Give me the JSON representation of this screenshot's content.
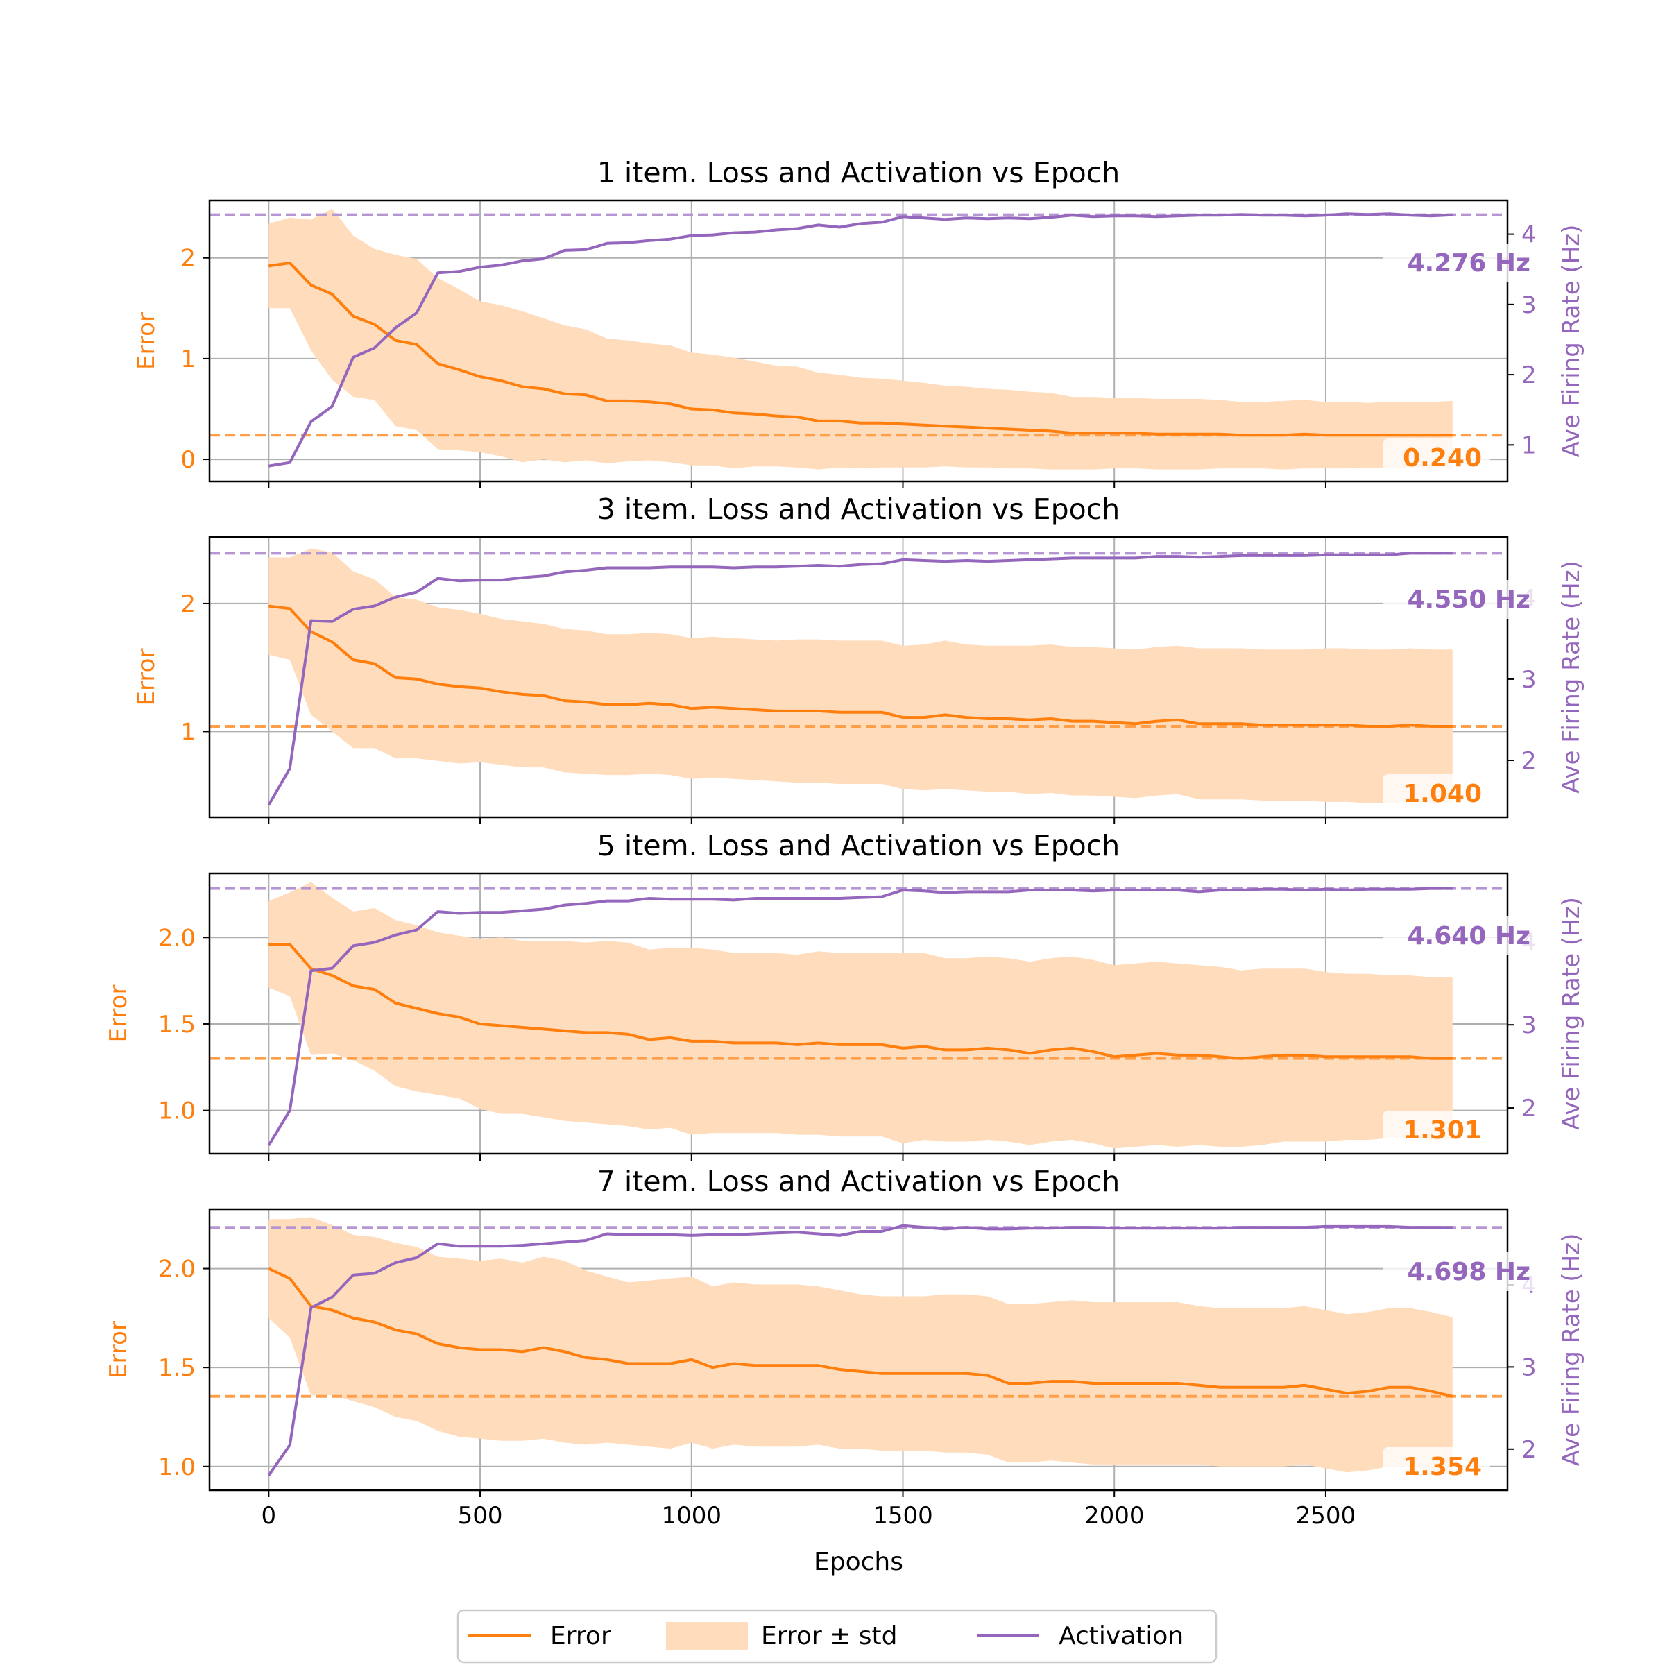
{
  "colors": {
    "error": "#ff7f0e",
    "band": "#ffdcbc",
    "activation": "#9467bd",
    "error_ref": "#ff9f4a",
    "act_ref": "#b596d3",
    "grid": "#b0b0b0",
    "axis": "#000000"
  },
  "shared": {
    "xlabel": "Epochs",
    "xticks": [
      0,
      500,
      1000,
      1500,
      2000,
      2500
    ],
    "xlim": [
      -140,
      2930
    ],
    "left_ylabel": "Error",
    "right_ylabel": "Ave Firing Rate (Hz)",
    "legend": {
      "position": "bottom-center",
      "items": [
        {
          "label": "Error",
          "kind": "line",
          "color_key": "error"
        },
        {
          "label": "Error ± std",
          "kind": "band",
          "color_key": "band"
        },
        {
          "label": "Activation",
          "kind": "line",
          "color_key": "activation"
        }
      ]
    }
  },
  "chart_data": [
    {
      "type": "line",
      "title": "1 item. Loss and Activation vs Epoch",
      "x": [
        0,
        50,
        100,
        150,
        200,
        250,
        300,
        350,
        400,
        450,
        500,
        550,
        600,
        650,
        700,
        750,
        800,
        850,
        900,
        950,
        1000,
        1050,
        1100,
        1150,
        1200,
        1250,
        1300,
        1350,
        1400,
        1450,
        1500,
        1550,
        1600,
        1650,
        1700,
        1750,
        1800,
        1850,
        1900,
        1950,
        2000,
        2050,
        2100,
        2150,
        2200,
        2250,
        2300,
        2350,
        2400,
        2450,
        2500,
        2550,
        2600,
        2650,
        2700,
        2750,
        2800
      ],
      "error": [
        1.92,
        1.95,
        1.73,
        1.64,
        1.42,
        1.34,
        1.18,
        1.14,
        0.95,
        0.89,
        0.82,
        0.78,
        0.72,
        0.7,
        0.65,
        0.64,
        0.58,
        0.58,
        0.57,
        0.55,
        0.5,
        0.49,
        0.46,
        0.45,
        0.43,
        0.42,
        0.38,
        0.38,
        0.36,
        0.36,
        0.35,
        0.34,
        0.33,
        0.32,
        0.31,
        0.3,
        0.29,
        0.28,
        0.26,
        0.26,
        0.26,
        0.26,
        0.25,
        0.25,
        0.25,
        0.25,
        0.24,
        0.24,
        0.24,
        0.25,
        0.24,
        0.24,
        0.24,
        0.24,
        0.24,
        0.24,
        0.24
      ],
      "error_std": [
        0.42,
        0.45,
        0.65,
        0.85,
        0.8,
        0.75,
        0.85,
        0.85,
        0.85,
        0.8,
        0.75,
        0.75,
        0.75,
        0.7,
        0.68,
        0.65,
        0.62,
        0.6,
        0.58,
        0.58,
        0.56,
        0.55,
        0.55,
        0.52,
        0.5,
        0.5,
        0.48,
        0.46,
        0.45,
        0.44,
        0.43,
        0.42,
        0.4,
        0.4,
        0.39,
        0.39,
        0.38,
        0.38,
        0.36,
        0.36,
        0.35,
        0.35,
        0.35,
        0.35,
        0.35,
        0.34,
        0.33,
        0.33,
        0.34,
        0.34,
        0.33,
        0.33,
        0.32,
        0.33,
        0.33,
        0.33,
        0.34
      ],
      "activation": [
        0.7,
        0.75,
        1.33,
        1.55,
        2.25,
        2.38,
        2.67,
        2.88,
        3.45,
        3.47,
        3.53,
        3.56,
        3.62,
        3.65,
        3.77,
        3.78,
        3.87,
        3.88,
        3.91,
        3.93,
        3.98,
        3.99,
        4.02,
        4.03,
        4.06,
        4.08,
        4.13,
        4.1,
        4.15,
        4.17,
        4.25,
        4.23,
        4.21,
        4.23,
        4.22,
        4.23,
        4.22,
        4.24,
        4.27,
        4.25,
        4.26,
        4.26,
        4.25,
        4.26,
        4.27,
        4.27,
        4.28,
        4.27,
        4.27,
        4.26,
        4.27,
        4.29,
        4.28,
        4.29,
        4.27,
        4.26,
        4.276
      ],
      "left_ylim": [
        -0.22,
        2.57
      ],
      "left_yticks": [
        {
          "v": 0,
          "label": "0"
        },
        {
          "v": 1,
          "label": "1"
        },
        {
          "v": 2,
          "label": "2"
        }
      ],
      "right_ylim": [
        0.48,
        4.48
      ],
      "right_yticks": [
        {
          "v": 1,
          "label": "1"
        },
        {
          "v": 2,
          "label": "2"
        },
        {
          "v": 3,
          "label": "3"
        },
        {
          "v": 4,
          "label": "4"
        }
      ],
      "error_final_label": "0.240",
      "error_final": 0.24,
      "act_final_label": "4.276 Hz",
      "act_final": 4.276
    },
    {
      "type": "line",
      "title": "3 item. Loss and Activation vs Epoch",
      "x": [
        0,
        50,
        100,
        150,
        200,
        250,
        300,
        350,
        400,
        450,
        500,
        550,
        600,
        650,
        700,
        750,
        800,
        850,
        900,
        950,
        1000,
        1050,
        1100,
        1150,
        1200,
        1250,
        1300,
        1350,
        1400,
        1450,
        1500,
        1550,
        1600,
        1650,
        1700,
        1750,
        1800,
        1850,
        1900,
        1950,
        2000,
        2050,
        2100,
        2150,
        2200,
        2250,
        2300,
        2350,
        2400,
        2450,
        2500,
        2550,
        2600,
        2650,
        2700,
        2750,
        2800
      ],
      "error": [
        1.98,
        1.96,
        1.78,
        1.7,
        1.56,
        1.53,
        1.42,
        1.41,
        1.37,
        1.35,
        1.34,
        1.31,
        1.29,
        1.28,
        1.24,
        1.23,
        1.21,
        1.21,
        1.22,
        1.21,
        1.18,
        1.19,
        1.18,
        1.17,
        1.16,
        1.16,
        1.16,
        1.15,
        1.15,
        1.15,
        1.11,
        1.11,
        1.13,
        1.11,
        1.1,
        1.1,
        1.09,
        1.1,
        1.08,
        1.08,
        1.07,
        1.06,
        1.08,
        1.09,
        1.06,
        1.06,
        1.06,
        1.05,
        1.05,
        1.05,
        1.05,
        1.05,
        1.04,
        1.04,
        1.05,
        1.04,
        1.04
      ],
      "error_std": [
        0.38,
        0.4,
        0.65,
        0.7,
        0.69,
        0.66,
        0.63,
        0.62,
        0.6,
        0.6,
        0.58,
        0.57,
        0.57,
        0.56,
        0.56,
        0.56,
        0.55,
        0.55,
        0.55,
        0.55,
        0.55,
        0.55,
        0.55,
        0.55,
        0.55,
        0.56,
        0.56,
        0.56,
        0.56,
        0.56,
        0.56,
        0.57,
        0.58,
        0.57,
        0.57,
        0.57,
        0.58,
        0.58,
        0.58,
        0.58,
        0.58,
        0.58,
        0.58,
        0.58,
        0.59,
        0.59,
        0.59,
        0.59,
        0.59,
        0.59,
        0.6,
        0.6,
        0.6,
        0.6,
        0.6,
        0.6,
        0.6
      ],
      "activation": [
        1.45,
        1.9,
        3.72,
        3.71,
        3.86,
        3.9,
        4.01,
        4.07,
        4.24,
        4.21,
        4.22,
        4.22,
        4.25,
        4.27,
        4.32,
        4.34,
        4.37,
        4.37,
        4.37,
        4.38,
        4.38,
        4.38,
        4.37,
        4.38,
        4.38,
        4.39,
        4.4,
        4.39,
        4.41,
        4.42,
        4.47,
        4.46,
        4.45,
        4.46,
        4.45,
        4.46,
        4.47,
        4.48,
        4.49,
        4.49,
        4.49,
        4.49,
        4.51,
        4.51,
        4.5,
        4.51,
        4.52,
        4.52,
        4.52,
        4.52,
        4.53,
        4.53,
        4.53,
        4.53,
        4.55,
        4.55,
        4.55
      ],
      "left_ylim": [
        0.33,
        2.52
      ],
      "left_yticks": [
        {
          "v": 1,
          "label": "1"
        },
        {
          "v": 2,
          "label": "2"
        }
      ],
      "right_ylim": [
        1.3,
        4.75
      ],
      "right_yticks": [
        {
          "v": 2,
          "label": "2"
        },
        {
          "v": 3,
          "label": "3"
        },
        {
          "v": 4,
          "label": "4"
        }
      ],
      "error_final_label": "1.040",
      "error_final": 1.04,
      "act_final_label": "4.550 Hz",
      "act_final": 4.55
    },
    {
      "type": "line",
      "title": "5 item. Loss and Activation vs Epoch",
      "x": [
        0,
        50,
        100,
        150,
        200,
        250,
        300,
        350,
        400,
        450,
        500,
        550,
        600,
        650,
        700,
        750,
        800,
        850,
        900,
        950,
        1000,
        1050,
        1100,
        1150,
        1200,
        1250,
        1300,
        1350,
        1400,
        1450,
        1500,
        1550,
        1600,
        1650,
        1700,
        1750,
        1800,
        1850,
        1900,
        1950,
        2000,
        2050,
        2100,
        2150,
        2200,
        2250,
        2300,
        2350,
        2400,
        2450,
        2500,
        2550,
        2600,
        2650,
        2700,
        2750,
        2800
      ],
      "error": [
        1.96,
        1.96,
        1.82,
        1.78,
        1.72,
        1.7,
        1.62,
        1.59,
        1.56,
        1.54,
        1.5,
        1.49,
        1.48,
        1.47,
        1.46,
        1.45,
        1.45,
        1.44,
        1.41,
        1.42,
        1.4,
        1.4,
        1.39,
        1.39,
        1.39,
        1.38,
        1.39,
        1.38,
        1.38,
        1.38,
        1.36,
        1.37,
        1.35,
        1.35,
        1.36,
        1.35,
        1.33,
        1.35,
        1.36,
        1.34,
        1.31,
        1.32,
        1.33,
        1.32,
        1.32,
        1.31,
        1.3,
        1.31,
        1.32,
        1.32,
        1.31,
        1.31,
        1.31,
        1.31,
        1.31,
        1.3,
        1.301
      ],
      "error_std": [
        0.25,
        0.3,
        0.5,
        0.45,
        0.43,
        0.47,
        0.48,
        0.48,
        0.47,
        0.47,
        0.49,
        0.51,
        0.5,
        0.51,
        0.52,
        0.52,
        0.53,
        0.53,
        0.52,
        0.52,
        0.54,
        0.53,
        0.52,
        0.52,
        0.52,
        0.52,
        0.53,
        0.53,
        0.53,
        0.53,
        0.55,
        0.54,
        0.53,
        0.53,
        0.53,
        0.53,
        0.53,
        0.53,
        0.53,
        0.53,
        0.53,
        0.53,
        0.53,
        0.53,
        0.52,
        0.52,
        0.51,
        0.51,
        0.5,
        0.5,
        0.49,
        0.48,
        0.48,
        0.47,
        0.47,
        0.47,
        0.47
      ],
      "activation": [
        1.55,
        1.97,
        3.65,
        3.68,
        3.95,
        3.99,
        4.08,
        4.14,
        4.36,
        4.34,
        4.35,
        4.35,
        4.37,
        4.39,
        4.44,
        4.46,
        4.49,
        4.49,
        4.52,
        4.51,
        4.51,
        4.51,
        4.5,
        4.52,
        4.52,
        4.52,
        4.52,
        4.52,
        4.53,
        4.54,
        4.62,
        4.61,
        4.59,
        4.6,
        4.6,
        4.6,
        4.62,
        4.62,
        4.62,
        4.61,
        4.62,
        4.62,
        4.62,
        4.62,
        4.6,
        4.62,
        4.62,
        4.63,
        4.63,
        4.62,
        4.63,
        4.62,
        4.63,
        4.63,
        4.63,
        4.64,
        4.64
      ],
      "left_ylim": [
        0.75,
        2.37
      ],
      "left_yticks": [
        {
          "v": 1.0,
          "label": "1.0"
        },
        {
          "v": 1.5,
          "label": "1.5"
        },
        {
          "v": 2.0,
          "label": "2.0"
        }
      ],
      "right_ylim": [
        1.45,
        4.82
      ],
      "right_yticks": [
        {
          "v": 2,
          "label": "2"
        },
        {
          "v": 3,
          "label": "3"
        },
        {
          "v": 4,
          "label": "4"
        }
      ],
      "error_final_label": "1.301",
      "error_final": 1.301,
      "act_final_label": "4.640 Hz",
      "act_final": 4.64
    },
    {
      "type": "line",
      "title": "7 item. Loss and Activation vs Epoch",
      "x": [
        0,
        50,
        100,
        150,
        200,
        250,
        300,
        350,
        400,
        450,
        500,
        550,
        600,
        650,
        700,
        750,
        800,
        850,
        900,
        950,
        1000,
        1050,
        1100,
        1150,
        1200,
        1250,
        1300,
        1350,
        1400,
        1450,
        1500,
        1550,
        1600,
        1650,
        1700,
        1750,
        1800,
        1850,
        1900,
        1950,
        2000,
        2050,
        2100,
        2150,
        2200,
        2250,
        2300,
        2350,
        2400,
        2450,
        2500,
        2550,
        2600,
        2650,
        2700,
        2750,
        2800
      ],
      "error": [
        2.0,
        1.95,
        1.81,
        1.79,
        1.75,
        1.73,
        1.69,
        1.67,
        1.62,
        1.6,
        1.59,
        1.59,
        1.58,
        1.6,
        1.58,
        1.55,
        1.54,
        1.52,
        1.52,
        1.52,
        1.54,
        1.5,
        1.52,
        1.51,
        1.51,
        1.51,
        1.51,
        1.49,
        1.48,
        1.47,
        1.47,
        1.47,
        1.47,
        1.47,
        1.46,
        1.42,
        1.42,
        1.43,
        1.43,
        1.42,
        1.42,
        1.42,
        1.42,
        1.42,
        1.41,
        1.4,
        1.4,
        1.4,
        1.4,
        1.41,
        1.39,
        1.37,
        1.38,
        1.4,
        1.4,
        1.38,
        1.354
      ],
      "error_std": [
        0.25,
        0.3,
        0.45,
        0.43,
        0.42,
        0.43,
        0.44,
        0.44,
        0.44,
        0.45,
        0.45,
        0.46,
        0.45,
        0.46,
        0.46,
        0.44,
        0.42,
        0.41,
        0.42,
        0.43,
        0.42,
        0.41,
        0.41,
        0.41,
        0.41,
        0.41,
        0.4,
        0.4,
        0.39,
        0.39,
        0.39,
        0.39,
        0.4,
        0.4,
        0.4,
        0.4,
        0.4,
        0.4,
        0.41,
        0.41,
        0.41,
        0.41,
        0.41,
        0.41,
        0.4,
        0.4,
        0.4,
        0.4,
        0.4,
        0.4,
        0.4,
        0.4,
        0.4,
        0.4,
        0.4,
        0.4,
        0.4
      ],
      "activation": [
        1.68,
        2.05,
        3.72,
        3.85,
        4.12,
        4.14,
        4.27,
        4.33,
        4.5,
        4.47,
        4.47,
        4.47,
        4.48,
        4.5,
        4.52,
        4.54,
        4.62,
        4.61,
        4.61,
        4.61,
        4.6,
        4.61,
        4.61,
        4.62,
        4.63,
        4.64,
        4.62,
        4.6,
        4.65,
        4.65,
        4.72,
        4.7,
        4.68,
        4.7,
        4.68,
        4.68,
        4.69,
        4.69,
        4.7,
        4.7,
        4.69,
        4.69,
        4.69,
        4.69,
        4.69,
        4.69,
        4.7,
        4.7,
        4.7,
        4.7,
        4.71,
        4.71,
        4.71,
        4.71,
        4.7,
        4.7,
        4.698
      ],
      "left_ylim": [
        0.88,
        2.3
      ],
      "left_yticks": [
        {
          "v": 1.0,
          "label": "1.0"
        },
        {
          "v": 1.5,
          "label": "1.5"
        },
        {
          "v": 2.0,
          "label": "2.0"
        }
      ],
      "right_ylim": [
        1.5,
        4.92
      ],
      "right_yticks": [
        {
          "v": 2,
          "label": "2"
        },
        {
          "v": 3,
          "label": "3"
        },
        {
          "v": 4,
          "label": "4"
        }
      ],
      "error_final_label": "1.354",
      "error_final": 1.354,
      "act_final_label": "4.698 Hz",
      "act_final": 4.698
    }
  ]
}
